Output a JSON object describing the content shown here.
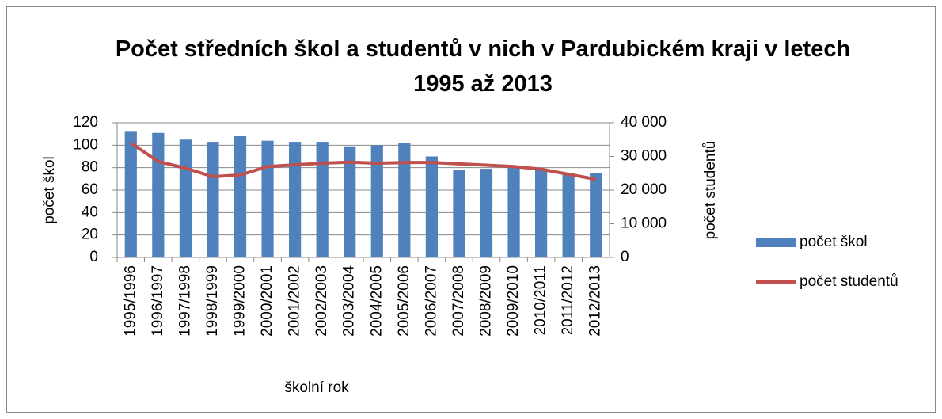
{
  "chart_data": {
    "type": "bar",
    "title": "Počet středních škol a studentů v nich v Pardubickém kraji v letech 1995 až 2013",
    "xlabel": "školní rok",
    "ylabel": "počet škol",
    "y2label": "počet studentů",
    "categories": [
      "1995/1996",
      "1996/1997",
      "1997/1998",
      "1998/1999",
      "1999/2000",
      "2000/2001",
      "2001/2002",
      "2002/2003",
      "2003/2004",
      "2004/2005",
      "2005/2006",
      "2006/2007",
      "2007/2008",
      "2008/2009",
      "2009/2010",
      "2010/2011",
      "2011/2012",
      "2012/2013"
    ],
    "series": [
      {
        "name": "počet škol",
        "type": "bar",
        "color": "#4f81bd",
        "values": [
          112,
          111,
          105,
          103,
          108,
          104,
          103,
          103,
          99,
          100,
          102,
          90,
          78,
          79,
          80,
          79,
          75,
          75
        ]
      },
      {
        "name": "počet studentů",
        "type": "line",
        "axis": "y2",
        "color": "#c0504d",
        "values": [
          34000,
          28500,
          26500,
          24000,
          24500,
          27000,
          27500,
          28000,
          28300,
          28000,
          28200,
          28200,
          27800,
          27400,
          27000,
          26200,
          24700,
          23200
        ]
      }
    ],
    "ylim": [
      0,
      120
    ],
    "yticks": [
      0,
      20,
      40,
      60,
      80,
      100,
      120
    ],
    "y2lim": [
      0,
      40000
    ],
    "y2ticks": [
      0,
      {
        "value": 10000,
        "label": "10 000"
      },
      {
        "value": 20000,
        "label": "20 000"
      },
      {
        "value": 30000,
        "label": "30 000"
      },
      {
        "value": 40000,
        "label": "40 000"
      }
    ],
    "grid": true,
    "legend": "right"
  }
}
